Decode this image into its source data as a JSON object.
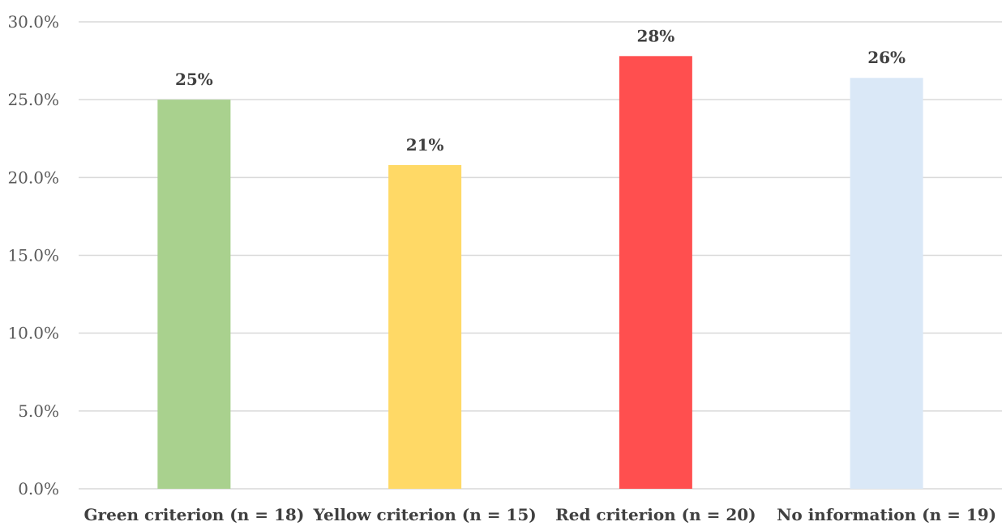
{
  "chart_data": {
    "type": "bar",
    "title": "",
    "xlabel": "",
    "ylabel": "",
    "categories": [
      "Green criterion (n = 18)",
      "Yellow criterion (n = 15)",
      "Red criterion (n = 20)",
      "No information (n = 19)"
    ],
    "values": [
      25.0,
      20.8,
      27.8,
      26.4
    ],
    "data_labels": [
      "25%",
      "21%",
      "28%",
      "26%"
    ],
    "colors": [
      "#a9d18e",
      "#ffd966",
      "#ff4f4f",
      "#dae8f7"
    ],
    "ylim": [
      0,
      30
    ],
    "yticks": [
      0,
      5,
      10,
      15,
      20,
      25,
      30
    ],
    "ytick_labels": [
      "0.0%",
      "5.0%",
      "10.0%",
      "15.0%",
      "20.0%",
      "25.0%",
      "30.0%"
    ],
    "grid": true,
    "legend": "none"
  }
}
